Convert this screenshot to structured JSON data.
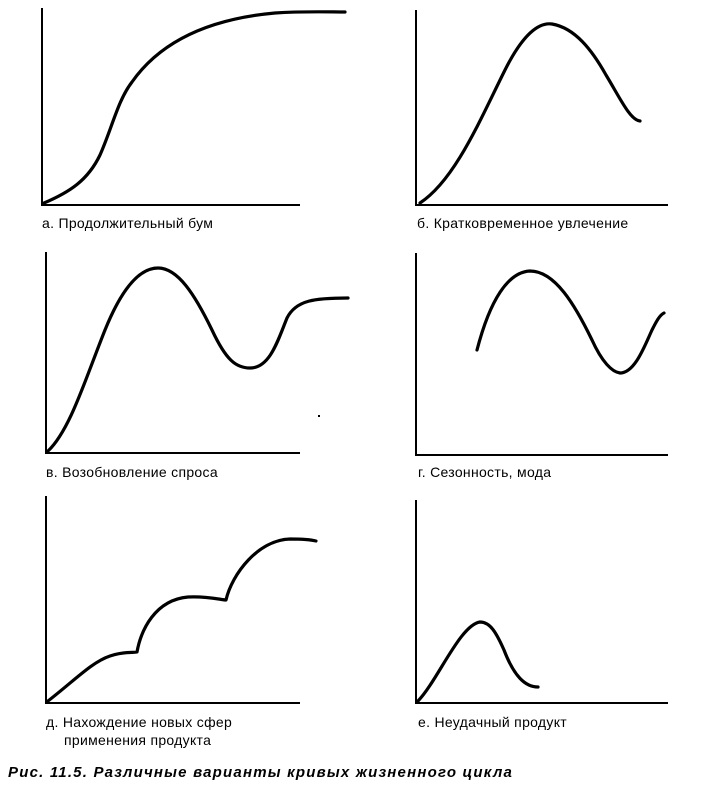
{
  "panels": [
    {
      "id": "a",
      "label": "а. Продолжительный бум"
    },
    {
      "id": "b",
      "label": "б. Кратковременное увлечение"
    },
    {
      "id": "v",
      "label": "в. Возобновление спроса"
    },
    {
      "id": "g",
      "label": "г. Сезонность, мода"
    },
    {
      "id": "d",
      "label_lines": [
        "д. Нахождение новых сфер",
        "применения продукта"
      ]
    },
    {
      "id": "e",
      "label": "е. Неудачный продукт"
    }
  ],
  "caption": "Рис. 11.5. Различные варианты кривых жизненного цикла"
}
